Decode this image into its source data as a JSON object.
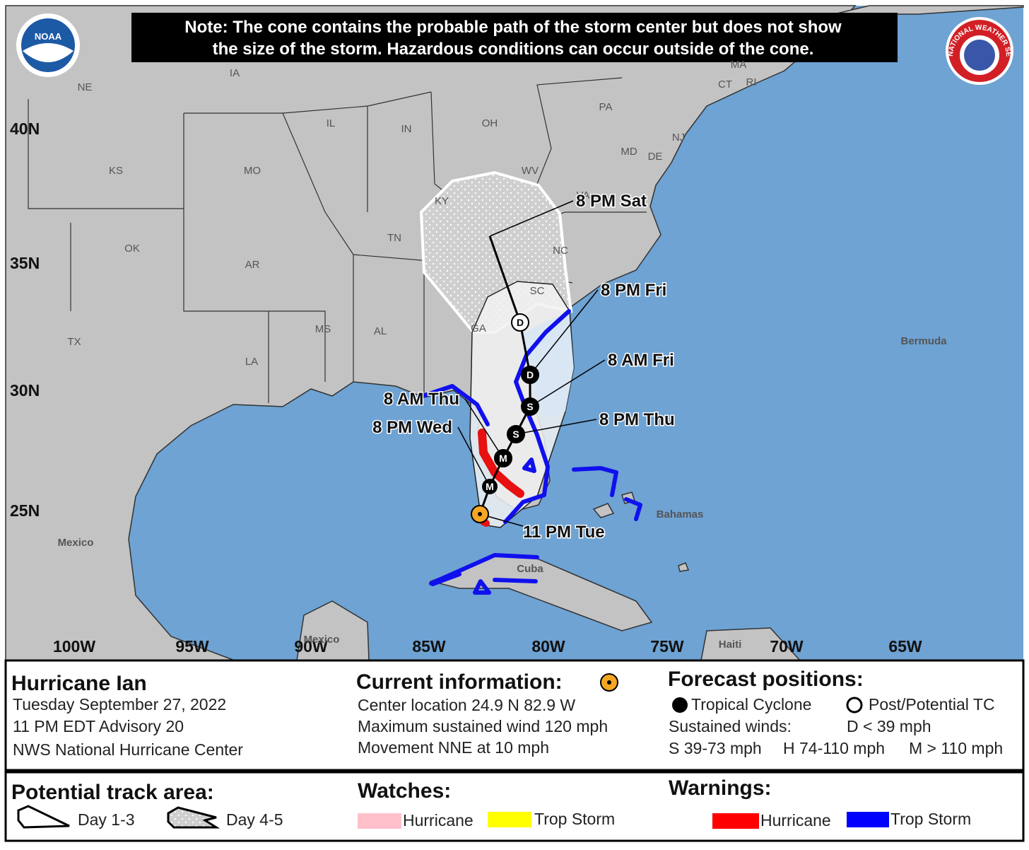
{
  "map": {
    "note": [
      "Note: The cone contains the probable path of the storm center but does not show",
      "the size of the storm. Hazardous conditions can occur outside of the cone."
    ],
    "noaa_logo": "NOAA",
    "nws_logo": "NATIONAL WEATHER SERVICE",
    "lat_labels": [
      "40N",
      "35N",
      "30N",
      "25N"
    ],
    "lon_labels": [
      "100W",
      "95W",
      "90W",
      "85W",
      "80W",
      "75W",
      "70W",
      "65W"
    ],
    "state_labels": [
      "NE",
      "IA",
      "IL",
      "IN",
      "OH",
      "PA",
      "KS",
      "MO",
      "WV",
      "VA",
      "KY",
      "TN",
      "NC",
      "OK",
      "AR",
      "SC",
      "MS",
      "AL",
      "GA",
      "TX",
      "LA",
      "MA",
      "CT",
      "RI",
      "NJ",
      "MD",
      "DE"
    ],
    "place_labels": [
      "Bermuda",
      "Bahamas",
      "Mexico",
      "Mexico",
      "Cuba",
      "Haiti"
    ],
    "forecast_points": [
      {
        "symbol": "M",
        "label": "8 PM Wed"
      },
      {
        "symbol": "M",
        "label": "8 AM Thu"
      },
      {
        "symbol": "S",
        "label": "8 PM Thu"
      },
      {
        "symbol": "S",
        "label": "8 AM Fri"
      },
      {
        "symbol": "D",
        "label": "8 PM Fri"
      },
      {
        "symbol": "D",
        "label": "8 PM Sat"
      }
    ],
    "current_label": "11 PM Tue"
  },
  "info": {
    "storm": "Hurricane Ian",
    "date": "Tuesday September 27, 2022",
    "advisory": "11 PM EDT Advisory 20",
    "center": "NWS National Hurricane Center",
    "current_title": "Current information:",
    "current_lines": [
      "Center location 24.9 N 82.9 W",
      "Maximum sustained wind 120 mph",
      "Movement NNE at 10 mph"
    ],
    "forecast_title": "Forecast positions:",
    "tropical": "Tropical Cyclone",
    "post": "Post/Potential TC",
    "winds": "Sustained winds:",
    "d_range": "D < 39 mph",
    "s_range": "S 39-73 mph",
    "h_range": "H 74-110 mph",
    "m_range": "M > 110 mph"
  },
  "legend": {
    "track_title": "Potential track area:",
    "day13": "Day 1-3",
    "day45": "Day 4-5",
    "watches_title": "Watches:",
    "watch_hurricane": "Hurricane",
    "watch_storm": "Trop Storm",
    "warnings_title": "Warnings:",
    "warn_hurricane": "Hurricane",
    "warn_storm": "Trop Storm"
  }
}
